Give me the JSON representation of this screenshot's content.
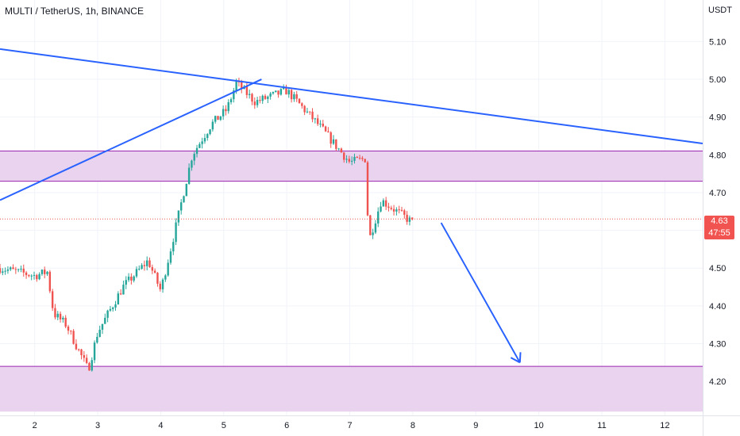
{
  "header": {
    "title": "MULTI / TetherUS, 1h, BINANCE",
    "unit": "USDT"
  },
  "price_badge": {
    "price": "4.63",
    "countdown": "47:55",
    "color": "#f05350"
  },
  "colors": {
    "up": "#26a69a",
    "down": "#ef5350",
    "trendline": "#2962ff",
    "zone_fill": "#e9d3ef",
    "zone_border": "#9c27b0",
    "last_price_line": "#ef5350",
    "grid": "#f0f3fa"
  },
  "chart_data": {
    "type": "candlestick",
    "title": "MULTI / TetherUS, 1h, BINANCE",
    "x_tick_labels": [
      "2",
      "3",
      "4",
      "5",
      "6",
      "7",
      "8",
      "9",
      "10",
      "11",
      "12"
    ],
    "x_tick_days": [
      2,
      3,
      4,
      5,
      6,
      7,
      8,
      9,
      10,
      11,
      12
    ],
    "y_tick_labels": [
      "4.20",
      "4.30",
      "4.40",
      "4.50",
      "4.60",
      "4.70",
      "4.80",
      "4.90",
      "5.00",
      "5.10"
    ],
    "y_ticks": [
      4.2,
      4.3,
      4.4,
      4.5,
      4.6,
      4.7,
      4.8,
      4.9,
      5.0,
      5.1
    ],
    "x_range_days": [
      1.45,
      12.6
    ],
    "y_range": [
      4.11,
      5.21
    ],
    "grid": true,
    "last_price": 4.63,
    "price_path_days": [
      1.45,
      2.0,
      2.2,
      2.3,
      2.5,
      2.85,
      3.0,
      3.4,
      3.8,
      4.0,
      4.2,
      4.5,
      4.8,
      5.05,
      5.2,
      5.5,
      6.0,
      6.5,
      7.0,
      7.25,
      7.3,
      7.5,
      8.0
    ],
    "price_path_values": [
      4.5,
      4.48,
      4.49,
      4.38,
      4.35,
      4.23,
      4.33,
      4.45,
      4.52,
      4.44,
      4.58,
      4.8,
      4.88,
      4.92,
      4.99,
      4.94,
      4.97,
      4.88,
      4.78,
      4.79,
      4.57,
      4.68,
      4.62
    ],
    "resistance_zone": [
      4.73,
      4.81
    ],
    "support_zone": [
      4.12,
      4.24
    ],
    "trendlines": [
      {
        "name": "descending",
        "from": [
          1.45,
          5.08
        ],
        "to": [
          12.6,
          4.83
        ]
      },
      {
        "name": "ascending",
        "from": [
          1.45,
          4.68
        ],
        "to": [
          5.6,
          5.0
        ]
      }
    ],
    "projection_arrow": {
      "from": [
        8.45,
        4.62
      ],
      "to": [
        9.7,
        4.25
      ]
    }
  }
}
